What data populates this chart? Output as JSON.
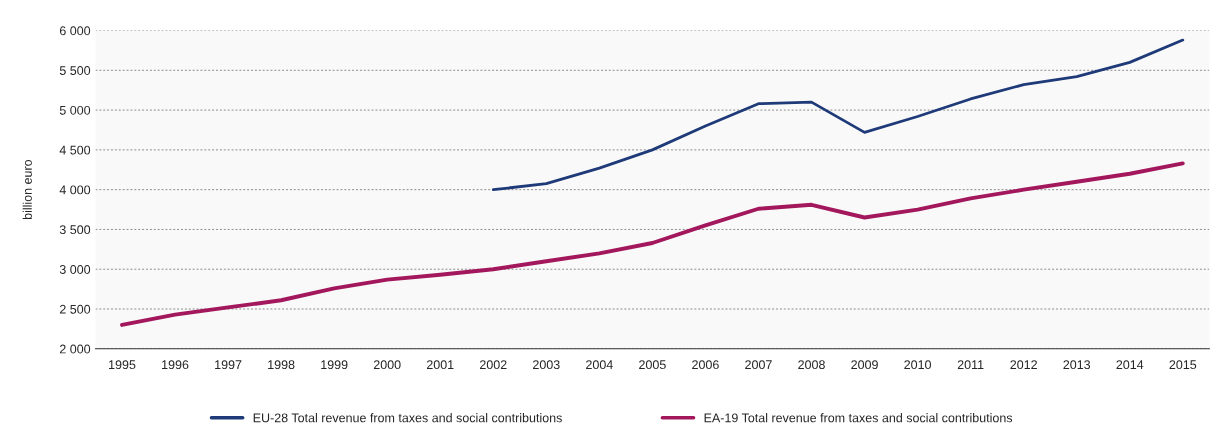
{
  "chart_data": {
    "type": "line",
    "ylabel": "billion euro",
    "categories": [
      "1995",
      "1996",
      "1997",
      "1998",
      "1999",
      "2000",
      "2001",
      "2002",
      "2003",
      "2004",
      "2005",
      "2006",
      "2007",
      "2008",
      "2009",
      "2010",
      "2011",
      "2012",
      "2013",
      "2014",
      "2015"
    ],
    "series": [
      {
        "name": "EU-28 Total revenue from taxes and social contributions",
        "color": "#1f3a78",
        "values": [
          null,
          null,
          null,
          null,
          null,
          null,
          null,
          4000,
          4075,
          4270,
          4500,
          4800,
          5080,
          5100,
          4720,
          4920,
          5140,
          5320,
          5420,
          5600,
          5880
        ]
      },
      {
        "name": "EA-19 Total revenue from taxes and social contributions",
        "color": "#a3185d",
        "values": [
          2300,
          2430,
          2520,
          2610,
          2760,
          2870,
          2930,
          3000,
          3100,
          3200,
          3330,
          3550,
          3760,
          3810,
          3650,
          3750,
          3890,
          4000,
          4100,
          4200,
          4330
        ]
      }
    ],
    "ylim": [
      2000,
      6000
    ],
    "yticks": [
      {
        "value": 2000,
        "label": "2 000"
      },
      {
        "value": 2500,
        "label": "2 500"
      },
      {
        "value": 3000,
        "label": "3 000"
      },
      {
        "value": 3500,
        "label": "3 500"
      },
      {
        "value": 4000,
        "label": "4 000"
      },
      {
        "value": 4500,
        "label": "4 500"
      },
      {
        "value": 5000,
        "label": "5 000"
      },
      {
        "value": 5500,
        "label": "5 500"
      },
      {
        "value": 6000,
        "label": "6 000"
      }
    ],
    "grid": "y",
    "legend": "bottom",
    "marker": "none",
    "line_style": "solid"
  }
}
